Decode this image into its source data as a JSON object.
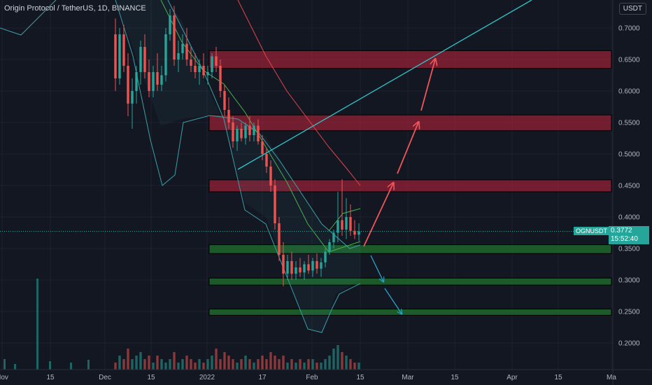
{
  "header": {
    "title": "Origin Protocol / TetherUS, 1D, BINANCE",
    "currency": "USDT"
  },
  "price_label": {
    "symbol": "OGNUSDT",
    "price": "0.3772",
    "countdown": "15:52:40"
  },
  "colors": {
    "background": "#131722",
    "up": "#26a69a",
    "down": "#ef5350",
    "resistance_zone": "#b2233b",
    "support_zone": "#1f6b2c",
    "trendline": "#2ec4c9",
    "bollinger": "#3ba0a8",
    "ma_fast": "#4caf50",
    "ma_slow": "#e0464e",
    "arrow_up": "#f0555a",
    "arrow_down": "#2aa3c9"
  },
  "chart_data": {
    "type": "candlestick",
    "title": "Origin Protocol / TetherUS, 1D, BINANCE",
    "y_axis": {
      "ticks": [
        "0.7000",
        "0.6500",
        "0.6000",
        "0.5500",
        "0.5000",
        "0.4500",
        "0.4000",
        "0.3500",
        "0.3000",
        "0.2500",
        "0.2000"
      ],
      "ylim": [
        0.16,
        0.74
      ]
    },
    "x_axis": {
      "ticks": [
        "Nov",
        "15",
        "Dec",
        "15",
        "2022",
        "17",
        "Feb",
        "15",
        "Mar",
        "15",
        "Apr",
        "15",
        "Ma"
      ]
    },
    "current_price": 0.3772,
    "resistance_zones": [
      {
        "low": 0.636,
        "high": 0.664
      },
      {
        "low": 0.537,
        "high": 0.562
      },
      {
        "low": 0.44,
        "high": 0.459
      }
    ],
    "support_zones": [
      {
        "low": 0.342,
        "high": 0.356
      },
      {
        "low": 0.292,
        "high": 0.303
      },
      {
        "low": 0.244,
        "high": 0.254
      }
    ],
    "candles": [
      [
        0.69,
        0.715,
        0.6,
        0.62
      ],
      [
        0.62,
        0.7,
        0.61,
        0.69
      ],
      [
        0.69,
        0.705,
        0.63,
        0.64
      ],
      [
        0.64,
        0.66,
        0.56,
        0.58
      ],
      [
        0.58,
        0.62,
        0.54,
        0.6
      ],
      [
        0.6,
        0.64,
        0.58,
        0.63
      ],
      [
        0.63,
        0.68,
        0.61,
        0.67
      ],
      [
        0.67,
        0.69,
        0.62,
        0.63
      ],
      [
        0.63,
        0.65,
        0.59,
        0.6
      ],
      [
        0.6,
        0.64,
        0.59,
        0.63
      ],
      [
        0.63,
        0.66,
        0.6,
        0.61
      ],
      [
        0.61,
        0.64,
        0.6,
        0.625
      ],
      [
        0.625,
        0.7,
        0.615,
        0.69
      ],
      [
        0.69,
        0.73,
        0.68,
        0.72
      ],
      [
        0.72,
        0.735,
        0.64,
        0.65
      ],
      [
        0.65,
        0.68,
        0.63,
        0.66
      ],
      [
        0.66,
        0.69,
        0.65,
        0.675
      ],
      [
        0.675,
        0.7,
        0.64,
        0.65
      ],
      [
        0.65,
        0.67,
        0.63,
        0.64
      ],
      [
        0.64,
        0.66,
        0.62,
        0.63
      ],
      [
        0.63,
        0.65,
        0.61,
        0.64
      ],
      [
        0.64,
        0.66,
        0.62,
        0.625
      ],
      [
        0.625,
        0.64,
        0.61,
        0.63
      ],
      [
        0.63,
        0.66,
        0.62,
        0.655
      ],
      [
        0.655,
        0.67,
        0.63,
        0.64
      ],
      [
        0.64,
        0.65,
        0.59,
        0.6
      ],
      [
        0.6,
        0.61,
        0.56,
        0.57
      ],
      [
        0.57,
        0.59,
        0.54,
        0.55
      ],
      [
        0.55,
        0.56,
        0.51,
        0.52
      ],
      [
        0.52,
        0.545,
        0.505,
        0.54
      ],
      [
        0.54,
        0.55,
        0.52,
        0.525
      ],
      [
        0.525,
        0.55,
        0.515,
        0.545
      ],
      [
        0.545,
        0.56,
        0.52,
        0.53
      ],
      [
        0.53,
        0.55,
        0.52,
        0.545
      ],
      [
        0.545,
        0.555,
        0.515,
        0.52
      ],
      [
        0.52,
        0.53,
        0.49,
        0.5
      ],
      [
        0.5,
        0.51,
        0.47,
        0.48
      ],
      [
        0.48,
        0.49,
        0.44,
        0.45
      ],
      [
        0.45,
        0.46,
        0.38,
        0.39
      ],
      [
        0.39,
        0.4,
        0.33,
        0.34
      ],
      [
        0.34,
        0.36,
        0.29,
        0.31
      ],
      [
        0.31,
        0.34,
        0.3,
        0.33
      ],
      [
        0.33,
        0.345,
        0.3,
        0.31
      ],
      [
        0.31,
        0.33,
        0.3,
        0.32
      ],
      [
        0.32,
        0.335,
        0.305,
        0.312
      ],
      [
        0.312,
        0.33,
        0.3,
        0.325
      ],
      [
        0.325,
        0.34,
        0.31,
        0.315
      ],
      [
        0.315,
        0.335,
        0.305,
        0.33
      ],
      [
        0.33,
        0.342,
        0.31,
        0.318
      ],
      [
        0.318,
        0.335,
        0.305,
        0.328
      ],
      [
        0.328,
        0.35,
        0.32,
        0.345
      ],
      [
        0.345,
        0.365,
        0.34,
        0.36
      ],
      [
        0.36,
        0.38,
        0.35,
        0.375
      ],
      [
        0.375,
        0.44,
        0.36,
        0.395
      ],
      [
        0.395,
        0.46,
        0.37,
        0.38
      ],
      [
        0.38,
        0.43,
        0.365,
        0.4
      ],
      [
        0.4,
        0.42,
        0.37,
        0.378
      ],
      [
        0.378,
        0.395,
        0.365,
        0.372
      ],
      [
        0.372,
        0.39,
        0.362,
        0.3772
      ]
    ],
    "volume": [
      2,
      4,
      3,
      6,
      3,
      4,
      5,
      3,
      4,
      2,
      4,
      3,
      2,
      3,
      5,
      2,
      3,
      4,
      3,
      2,
      3,
      2,
      3,
      4,
      6,
      3,
      5,
      4,
      3,
      2,
      3,
      4,
      3,
      2,
      3,
      4,
      3,
      5,
      4,
      3,
      4,
      2,
      3,
      2,
      3,
      2,
      3,
      3,
      2,
      2,
      3,
      4,
      6,
      7,
      5,
      4,
      3,
      2,
      2
    ]
  }
}
